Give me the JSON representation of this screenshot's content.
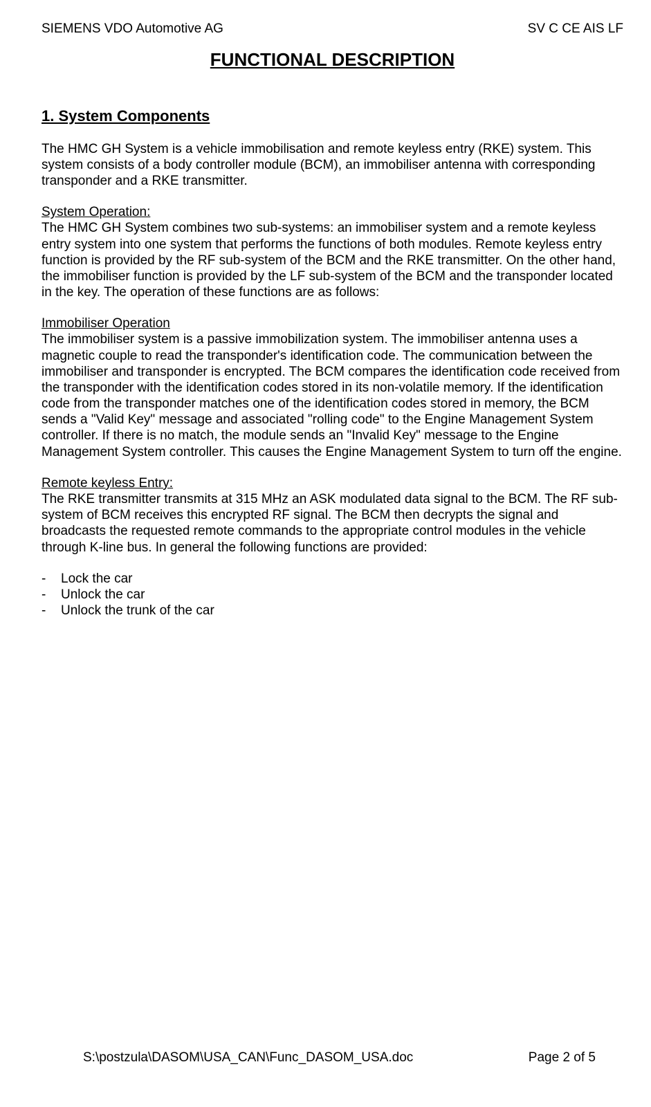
{
  "header": {
    "left": "SIEMENS VDO Automotive AG",
    "right": "SV C CE AIS LF"
  },
  "title": "FUNCTIONAL DESCRIPTION",
  "section1": {
    "heading": "1. System Components",
    "intro": "The HMC GH System is a vehicle immobilisation and remote keyless entry (RKE) system. This system consists of a body controller module (BCM), an immobiliser antenna with corresponding transponder and a RKE transmitter.",
    "sysop_heading": "System Operation:",
    "sysop_body": "The HMC GH System combines two sub-systems: an immobiliser system and a remote keyless entry system into one system that performs the functions of both modules. Remote keyless entry function is provided by the RF sub-system of the BCM and the RKE transmitter. On the other hand, the immobiliser function is provided by the LF sub-system of the BCM and the transponder located in the key. The operation of these functions are as follows:",
    "immo_heading": "Immobiliser Operation",
    "immo_body": "The immobiliser system is a passive immobilization system.  The immobiliser antenna uses a magnetic couple to read the transponder's identification code.  The communication between the immobiliser and transponder is encrypted.  The BCM compares the identification code received from the transponder with the identification codes stored in its non-volatile memory.  If the identification code from the transponder matches one of the identification codes stored in memory, the BCM sends a \"Valid Key\" message and associated \"rolling code\" to the Engine Management System controller.  If there is no match, the module sends an \"Invalid Key\" message to the Engine Management System controller. This causes the Engine Management System to turn off the engine.",
    "rke_heading": "Remote keyless Entry:",
    "rke_body": "The RKE transmitter transmits at 315 MHz an ASK modulated data signal to the BCM. The RF sub-system of BCM receives this encrypted RF signal. The BCM then decrypts the signal and broadcasts the requested remote commands to the appropriate control modules in the vehicle through K-line bus. In general the following functions are provided:",
    "functions": {
      "0": "Lock the car",
      "1": "Unlock the car",
      "2": "Unlock the trunk of the car"
    }
  },
  "footer": {
    "path": "S:\\postzula\\DASOM\\USA_CAN\\Func_DASOM_USA.doc",
    "page": "Page 2 of 5"
  },
  "dash": "-"
}
